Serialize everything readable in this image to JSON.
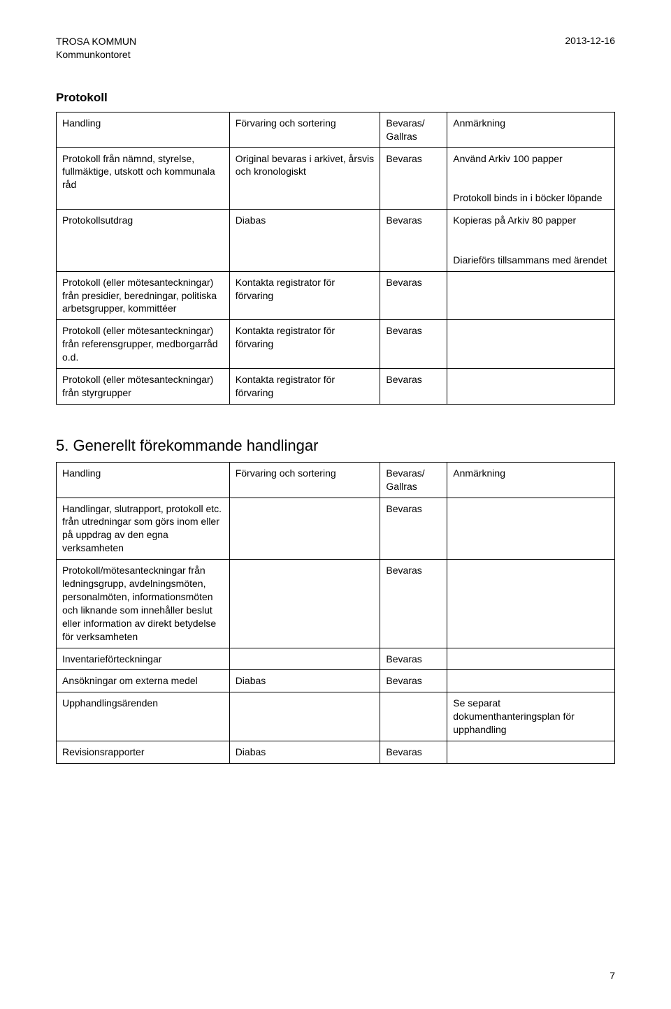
{
  "header": {
    "org_line1": "TROSA KOMMUN",
    "org_line2": "Kommunkontoret",
    "date": "2013-12-16"
  },
  "section1": {
    "title": "Protokoll",
    "columns": [
      "Handling",
      "Förvaring och sortering",
      "Bevaras/\nGallras",
      "Anmärkning"
    ],
    "rows": [
      {
        "c1": "Protokoll från nämnd, styrelse, fullmäktige, utskott och kommunala råd",
        "c2": "Original bevaras i arkivet, årsvis och kronologiskt",
        "c3": "Bevaras",
        "c4": "Använd Arkiv 100 papper\n\nProtokoll binds in i böcker löpande"
      },
      {
        "c1": "Protokollsutdrag",
        "c2": "Diabas",
        "c3": "Bevaras",
        "c4": "Kopieras på Arkiv 80 papper\n\nDiarieförs tillsammans med ärendet"
      },
      {
        "c1": "Protokoll (eller mötesanteckningar) från presidier, beredningar, politiska arbetsgrupper, kommittéer",
        "c2": "Kontakta registrator för förvaring",
        "c3": "Bevaras",
        "c4": ""
      },
      {
        "c1": "Protokoll (eller mötesanteckningar) från referensgrupper, medborgarråd o.d.",
        "c2": "Kontakta registrator för förvaring",
        "c3": "Bevaras",
        "c4": ""
      },
      {
        "c1": "Protokoll (eller mötesanteckningar) från styrgrupper",
        "c2": "Kontakta registrator för förvaring",
        "c3": "Bevaras",
        "c4": ""
      }
    ]
  },
  "section2": {
    "heading": "5. Generellt förekommande handlingar",
    "columns": [
      "Handling",
      "Förvaring och sortering",
      "Bevaras/\nGallras",
      "Anmärkning"
    ],
    "rows": [
      {
        "c1": "Handlingar, slutrapport, protokoll etc. från utredningar som görs inom eller på uppdrag av den egna verksamheten",
        "c2": "",
        "c3": "Bevaras",
        "c4": ""
      },
      {
        "c1": "Protokoll/mötesanteckningar från ledningsgrupp, avdelningsmöten, personalmöten, informationsmöten och liknande som innehåller beslut eller information av direkt betydelse för verksamheten",
        "c2": "",
        "c3": "Bevaras",
        "c4": ""
      },
      {
        "c1": "Inventarieförteckningar",
        "c2": "",
        "c3": "Bevaras",
        "c4": ""
      },
      {
        "c1": "Ansökningar om externa medel",
        "c2": "Diabas",
        "c3": "Bevaras",
        "c4": ""
      },
      {
        "c1": "Upphandlingsärenden",
        "c2": "",
        "c3": "",
        "c4": "Se separat dokumenthanteringsplan för upphandling"
      },
      {
        "c1": "Revisionsrapporter",
        "c2": "Diabas",
        "c3": "Bevaras",
        "c4": ""
      }
    ]
  },
  "page_number": "7"
}
